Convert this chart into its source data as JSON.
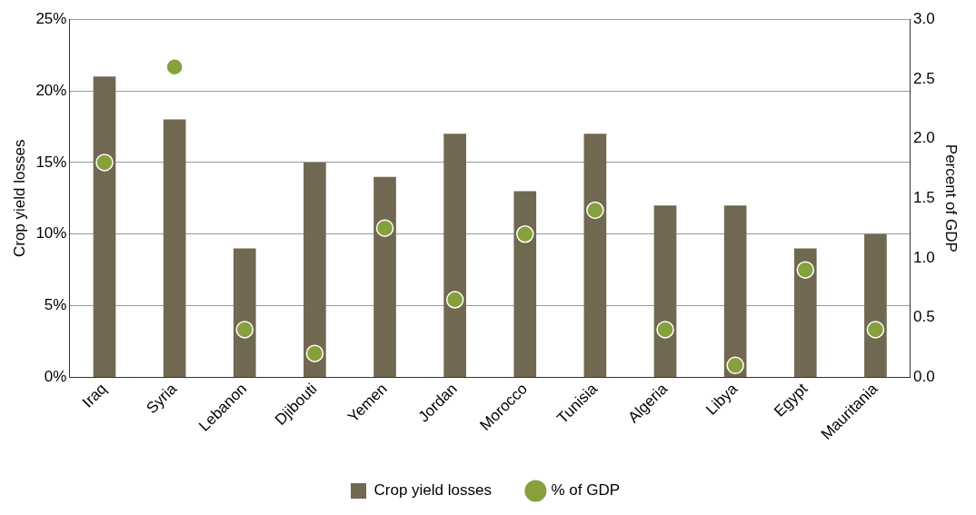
{
  "chart_data": {
    "type": "bar",
    "ylabel": "Crop yield losses",
    "y2label": "Percent of GDP",
    "categories": [
      "Iraq",
      "Syria",
      "Lebanon",
      "Djibouti",
      "Yemen",
      "Jordan",
      "Morocco",
      "Tunisia",
      "Algeria",
      "Libya",
      "Egypt",
      "Mauritania"
    ],
    "series": [
      {
        "name": "Crop yield losses",
        "color": "#716851",
        "values": [
          21,
          18,
          9,
          15,
          14,
          17,
          13,
          17,
          12,
          12,
          9,
          10
        ]
      },
      {
        "name": "% of GDP",
        "type": "scatter",
        "axis": "y2",
        "color": "#86a03c",
        "values": [
          1.8,
          2.6,
          0.4,
          0.2,
          1.25,
          0.65,
          1.2,
          1.4,
          0.4,
          0.1,
          0.9,
          0.4
        ]
      }
    ],
    "ylim": [
      0,
      25
    ],
    "yticks": [
      {
        "value": 0,
        "label": "0%"
      },
      {
        "value": 5,
        "label": "5%"
      },
      {
        "value": 10,
        "label": "10%"
      },
      {
        "value": 15,
        "label": "15%"
      },
      {
        "value": 20,
        "label": "20%"
      },
      {
        "value": 25,
        "label": "25%"
      }
    ],
    "y2lim": [
      0,
      3
    ],
    "y2ticks": [
      {
        "value": 0,
        "label": "0.0"
      },
      {
        "value": 0.5,
        "label": "0.5"
      },
      {
        "value": 1,
        "label": "1.0"
      },
      {
        "value": 1.5,
        "label": "1.5"
      },
      {
        "value": 2,
        "label": "2.0"
      },
      {
        "value": 2.5,
        "label": "2.5"
      },
      {
        "value": 3,
        "label": "3.0"
      }
    ],
    "grid": "y",
    "legend": "bottom",
    "marker": "circle"
  }
}
